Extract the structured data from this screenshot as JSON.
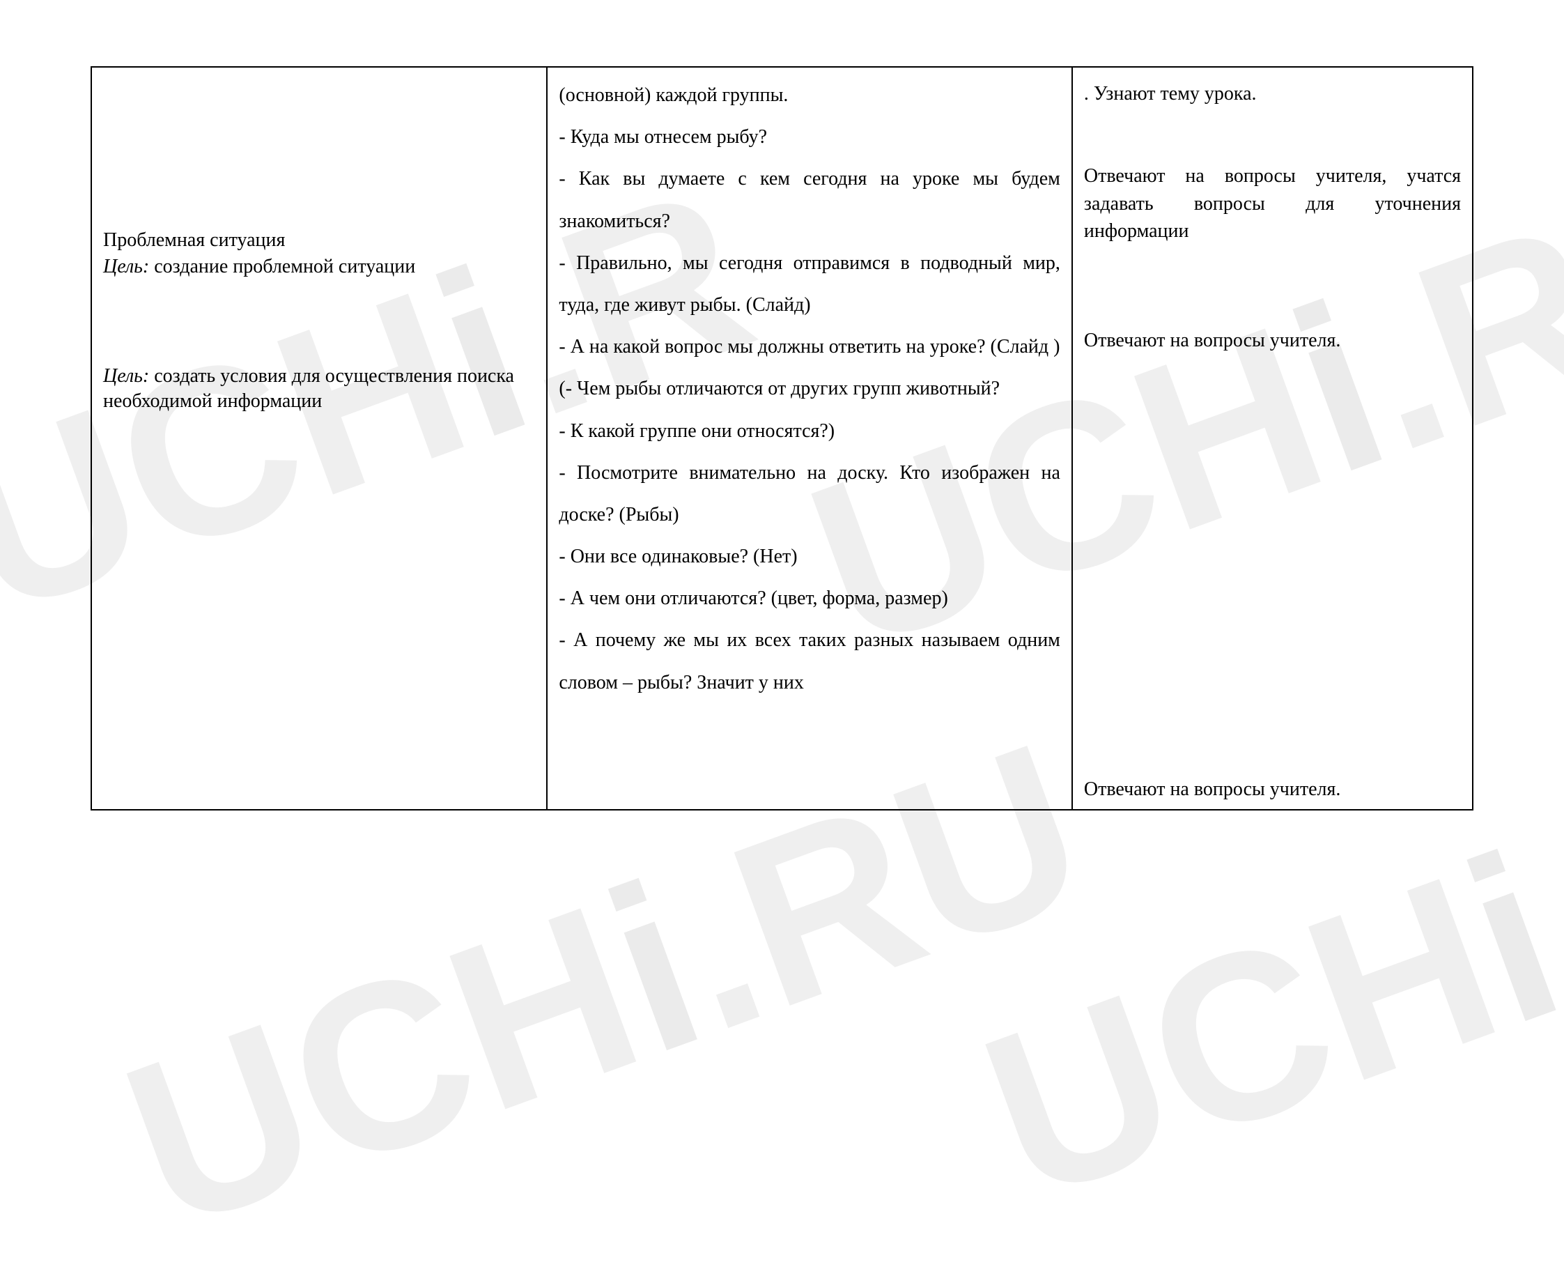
{
  "watermark": "UCHi.RU",
  "table": {
    "columns": {
      "widths_pct": [
        33,
        38,
        29
      ]
    },
    "border_color": "#000000",
    "background_color": "#ffffff",
    "text_color": "#000000",
    "font_family": "Times New Roman",
    "body_fontsize_pt": 21,
    "col1": {
      "section_title": "Проблемная ситуация",
      "goal1_label": "Цель:",
      "goal1_text": " создание проблемной ситуации",
      "goal2_label": "Цель:",
      "goal2_text": " создать условия для осуществления поиска необходимой информации"
    },
    "col2": {
      "lines": [
        "(основной) каждой группы.",
        "- Куда мы отнесем рыбу?",
        "- Как вы думаете с кем сегодня на уроке мы будем знакомиться?",
        "- Правильно, мы сегодня отправимся в подводный мир, туда, где живут рыбы. (Слайд)",
        "- А на какой вопрос мы должны ответить на уроке? (Слайд )",
        "(- Чем рыбы отличаются от других групп животный?",
        "- К какой группе они относятся?)",
        "- Посмотрите внимательно на доску. Кто изображен на доске? (Рыбы)",
        "- Они все одинаковые? (Нет)",
        "- А чем они отличаются? (цвет, форма, размер)",
        "- А почему же мы их всех таких разных называем одним словом – рыбы? Значит у них"
      ]
    },
    "col3": {
      "r1": ". Узнают тему урока.",
      "r2": "Отвечают на вопросы учителя, учатся задавать вопросы для уточнения информации",
      "r3": "Отвечают на вопросы учителя.",
      "r4": "Отвечают на вопросы учителя."
    }
  }
}
